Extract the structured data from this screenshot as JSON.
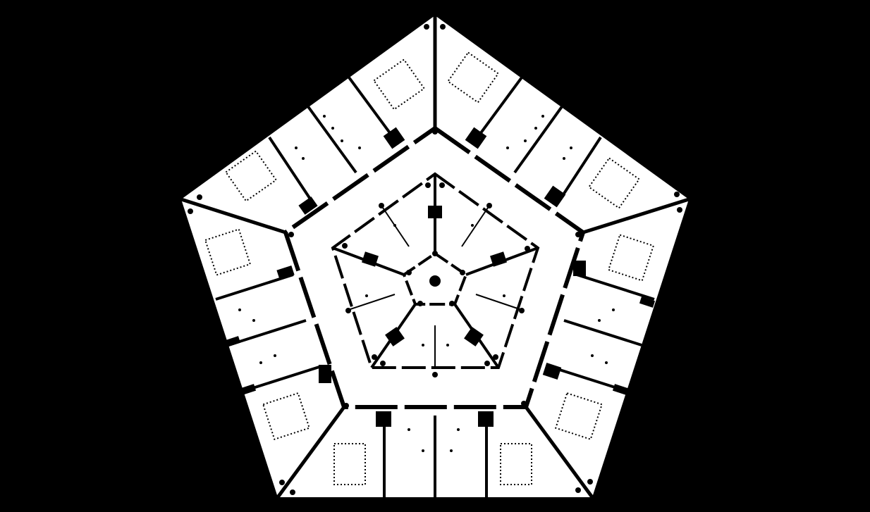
{
  "colors": {
    "background": "#000000",
    "floor": "#ffffff",
    "ink": "#000000"
  },
  "plan": {
    "sides": 5,
    "outer_wing_rooms": 20,
    "inner_rooms": 5,
    "core_shape": "pentagon"
  }
}
